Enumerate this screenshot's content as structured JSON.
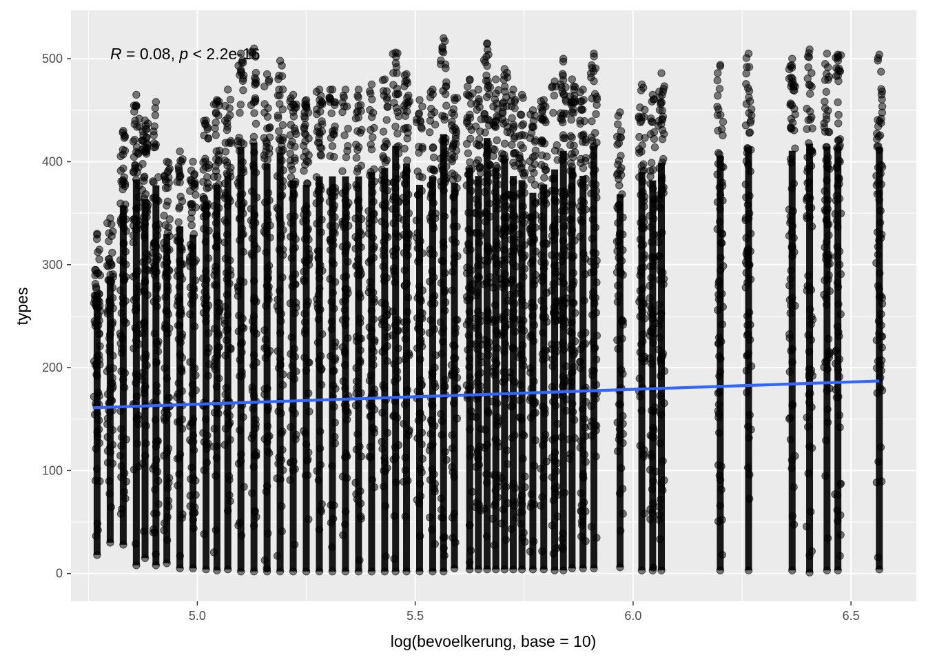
{
  "chart_data": {
    "type": "scatter",
    "title": "",
    "xlabel": "log(bevoelkerung, base = 10)",
    "ylabel": "types",
    "xlim": [
      4.71,
      6.65
    ],
    "ylim": [
      -27,
      547
    ],
    "x_ticks": [
      5.0,
      5.5,
      6.0,
      6.5
    ],
    "x_tick_labels": [
      "5.0",
      "5.5",
      "6.0",
      "6.5"
    ],
    "y_ticks": [
      0,
      100,
      200,
      300,
      400,
      500
    ],
    "y_tick_labels": [
      "0",
      "100",
      "200",
      "300",
      "400",
      "500"
    ],
    "grid": true,
    "legend": "none",
    "annotation": {
      "r_symbol": "R",
      "r_text": " = 0.08, ",
      "p_symbol": "p",
      "p_text": " < 2.2e-16"
    },
    "regression_line": {
      "x": [
        4.76,
        6.565
      ],
      "y": [
        161,
        187
      ],
      "color": "#3366ff"
    },
    "point_color": "#000000",
    "point_opacity": 0.5,
    "columns": [
      {
        "x": 4.77,
        "min": 18,
        "max": 330
      },
      {
        "x": 4.8,
        "min": 30,
        "max": 345
      },
      {
        "x": 4.83,
        "min": 28,
        "max": 430
      },
      {
        "x": 4.86,
        "min": 8,
        "max": 465
      },
      {
        "x": 4.88,
        "min": 15,
        "max": 440
      },
      {
        "x": 4.905,
        "min": 8,
        "max": 458
      },
      {
        "x": 4.93,
        "min": 10,
        "max": 400
      },
      {
        "x": 4.96,
        "min": 5,
        "max": 410
      },
      {
        "x": 4.99,
        "min": 5,
        "max": 400
      },
      {
        "x": 5.02,
        "min": 4,
        "max": 440
      },
      {
        "x": 5.045,
        "min": 3,
        "max": 460
      },
      {
        "x": 5.07,
        "min": 4,
        "max": 470
      },
      {
        "x": 5.1,
        "min": 2,
        "max": 505
      },
      {
        "x": 5.13,
        "min": 2,
        "max": 510
      },
      {
        "x": 5.16,
        "min": 2,
        "max": 485
      },
      {
        "x": 5.19,
        "min": 2,
        "max": 498
      },
      {
        "x": 5.22,
        "min": 2,
        "max": 465
      },
      {
        "x": 5.25,
        "min": 2,
        "max": 460
      },
      {
        "x": 5.28,
        "min": 2,
        "max": 470
      },
      {
        "x": 5.31,
        "min": 2,
        "max": 470
      },
      {
        "x": 5.34,
        "min": 2,
        "max": 470
      },
      {
        "x": 5.37,
        "min": 2,
        "max": 470
      },
      {
        "x": 5.4,
        "min": 2,
        "max": 475
      },
      {
        "x": 5.43,
        "min": 2,
        "max": 480
      },
      {
        "x": 5.455,
        "min": 2,
        "max": 506
      },
      {
        "x": 5.48,
        "min": 2,
        "max": 485
      },
      {
        "x": 5.51,
        "min": 2,
        "max": 460
      },
      {
        "x": 5.54,
        "min": 2,
        "max": 470
      },
      {
        "x": 5.565,
        "min": 2,
        "max": 520
      },
      {
        "x": 5.59,
        "min": 5,
        "max": 462
      },
      {
        "x": 5.625,
        "min": 4,
        "max": 480
      },
      {
        "x": 5.645,
        "min": 4,
        "max": 470
      },
      {
        "x": 5.665,
        "min": 4,
        "max": 515
      },
      {
        "x": 5.685,
        "min": 4,
        "max": 480
      },
      {
        "x": 5.705,
        "min": 4,
        "max": 490
      },
      {
        "x": 5.725,
        "min": 4,
        "max": 470
      },
      {
        "x": 5.745,
        "min": 4,
        "max": 465
      },
      {
        "x": 5.77,
        "min": 4,
        "max": 450
      },
      {
        "x": 5.795,
        "min": 4,
        "max": 460
      },
      {
        "x": 5.82,
        "min": 3,
        "max": 478
      },
      {
        "x": 5.84,
        "min": 3,
        "max": 500
      },
      {
        "x": 5.86,
        "min": 5,
        "max": 480
      },
      {
        "x": 5.885,
        "min": 5,
        "max": 470
      },
      {
        "x": 5.91,
        "min": 5,
        "max": 505
      },
      {
        "x": 5.97,
        "min": 6,
        "max": 448
      },
      {
        "x": 6.02,
        "min": 3,
        "max": 475
      },
      {
        "x": 6.045,
        "min": 3,
        "max": 465
      },
      {
        "x": 6.065,
        "min": 3,
        "max": 486
      },
      {
        "x": 6.2,
        "min": 3,
        "max": 494
      },
      {
        "x": 6.265,
        "min": 3,
        "max": 505
      },
      {
        "x": 6.365,
        "min": 3,
        "max": 500
      },
      {
        "x": 6.405,
        "min": 1,
        "max": 509
      },
      {
        "x": 6.445,
        "min": 3,
        "max": 505
      },
      {
        "x": 6.47,
        "min": 3,
        "max": 504
      },
      {
        "x": 6.565,
        "min": 4,
        "max": 504
      }
    ]
  }
}
